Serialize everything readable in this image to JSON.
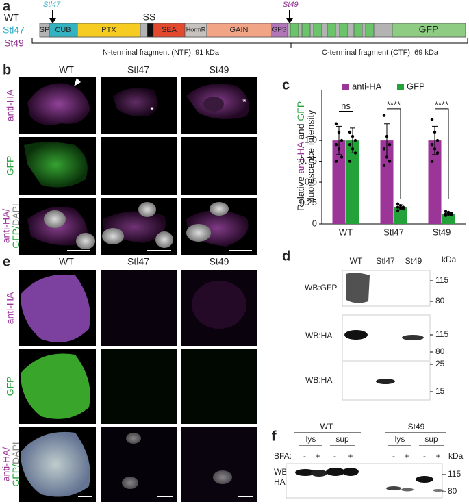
{
  "figure": {
    "a": {
      "label": "a",
      "rows": [
        "WT",
        "Stl47",
        "St49"
      ],
      "sites": [
        "Stl47",
        "St49"
      ],
      "ss": "SS",
      "domains": [
        "SP",
        "CUB",
        "PTX",
        "SEA",
        "HormR",
        "GAIN",
        "GPS",
        "GFP"
      ],
      "ntf": "N-terminal fragment (NTF), 91 kDa",
      "ctf": "C-terminal fragment (CTF), 69 kDa"
    },
    "b": {
      "label": "b",
      "columns": [
        "WT",
        "Stl47",
        "St49"
      ],
      "rows": [
        "anti-HA",
        "GFP"
      ],
      "merge": [
        "anti-HA/",
        "GFP/",
        "DAPI"
      ],
      "asterisks": [
        "*",
        "*"
      ]
    },
    "c": {
      "label": "c"
    },
    "d": {
      "label": "d",
      "lanes": [
        "WT",
        "Stl47",
        "St49"
      ],
      "unit": "kDa",
      "blots": [
        {
          "label": "WB:GFP",
          "markers": [
            "115",
            "80"
          ]
        },
        {
          "label": "WB:HA",
          "markers": [
            "115",
            "80"
          ]
        },
        {
          "label": "WB:HA",
          "markers": [
            "25",
            "15"
          ]
        }
      ]
    },
    "e": {
      "label": "e",
      "columns": [
        "WT",
        "Stl47",
        "St49"
      ],
      "rows": [
        "anti-HA",
        "GFP"
      ],
      "merge": [
        "anti-HA/",
        "GFP/",
        "DAPI"
      ]
    },
    "f": {
      "label": "f",
      "groups": [
        "WT",
        "St49"
      ],
      "fractions": [
        "lys",
        "sup",
        "lys",
        "sup"
      ],
      "treatment": "BFA:",
      "signs": [
        "-",
        "+",
        "-",
        "+",
        "-",
        "+",
        "-",
        "+"
      ],
      "unit": "kDa",
      "blot": [
        "WB:",
        "HA"
      ],
      "markers": [
        "115",
        "80"
      ]
    }
  },
  "chart_data": {
    "type": "bar",
    "categories": [
      "WT",
      "Stl47",
      "St49"
    ],
    "ylabel": [
      "Relative",
      "anti-HA",
      "and",
      "GFP",
      "fluorescence intensity"
    ],
    "ylim": [
      0,
      1.6
    ],
    "yticks": [
      0,
      0.25,
      0.5,
      0.75,
      {
        "value": 1,
        "label": "1.0"
      }
    ],
    "legend": "top",
    "series": [
      {
        "name": "anti-HA",
        "color": "#9b3598",
        "values": [
          1,
          1,
          1
        ],
        "errors": [
          0.17,
          0.2,
          0.17
        ],
        "points": [
          [
            1.2,
            1.1,
            1.0,
            0.95,
            0.9,
            0.8,
            0.75
          ],
          [
            1.3,
            1.05,
            0.95,
            0.9,
            0.8,
            0.75,
            0.7
          ],
          [
            1.25,
            1.1,
            1.0,
            0.95,
            0.9,
            0.85,
            0.75
          ]
        ]
      },
      {
        "name": "GFP",
        "color": "#23a23a",
        "values": [
          1,
          0.2,
          0.12
        ],
        "errors": [
          0.15,
          0.03,
          0.02
        ],
        "points": [
          [
            1.1,
            1.05,
            1.0,
            0.95,
            0.9,
            0.85,
            0.75
          ],
          [
            0.24,
            0.22,
            0.2,
            0.2,
            0.19,
            0.18,
            0.16
          ],
          [
            0.15,
            0.14,
            0.13,
            0.12,
            0.12,
            0.11,
            0.1
          ]
        ]
      }
    ],
    "annotations": [
      "ns",
      "****",
      "****"
    ]
  }
}
